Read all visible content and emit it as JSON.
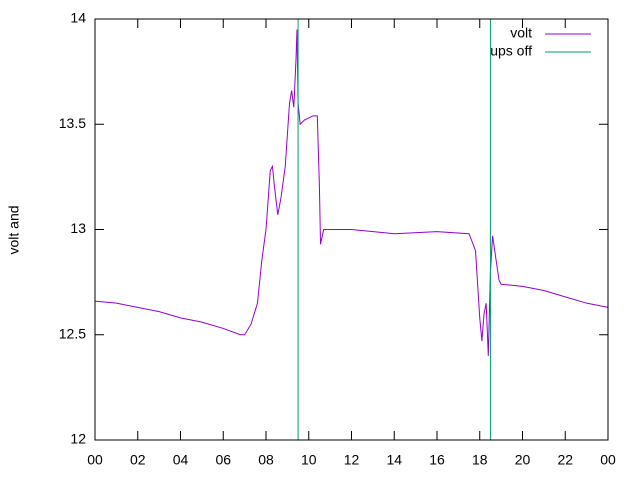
{
  "chart_data": {
    "type": "line",
    "ylabel": "volt and",
    "xlim": [
      0,
      24
    ],
    "xticks": [
      {
        "value": 0,
        "label": "00"
      },
      {
        "value": 2,
        "label": "02"
      },
      {
        "value": 4,
        "label": "04"
      },
      {
        "value": 6,
        "label": "06"
      },
      {
        "value": 8,
        "label": "08"
      },
      10,
      12,
      14,
      16,
      18,
      20,
      22,
      {
        "value": 24,
        "label": "00"
      }
    ],
    "ylim": [
      12,
      14
    ],
    "yticks": [
      12,
      12.5,
      13,
      13.5,
      14
    ],
    "legend": "top-right",
    "series": [
      {
        "name": "volt",
        "color": "#9400d3",
        "style": "lines",
        "x": [
          0,
          1,
          2,
          3,
          4,
          5,
          6,
          6.8,
          7,
          7.3,
          7.6,
          7.8,
          8,
          8.2,
          8.3,
          8.4,
          8.55,
          8.7,
          8.9,
          9.1,
          9.2,
          9.3,
          9.4,
          9.45,
          9.5,
          9.6,
          9.8,
          10,
          10.2,
          10.4,
          10.5,
          10.55,
          10.7,
          12,
          14,
          16,
          17.5,
          17.8,
          18,
          18.1,
          18.2,
          18.3,
          18.4,
          18.5,
          18.6,
          18.7,
          18.9,
          19,
          20,
          21,
          22,
          23,
          24
        ],
        "values": [
          12.66,
          12.65,
          12.63,
          12.61,
          12.58,
          12.56,
          12.53,
          12.5,
          12.5,
          12.55,
          12.65,
          12.85,
          13.0,
          13.28,
          13.3,
          13.2,
          13.07,
          13.15,
          13.3,
          13.6,
          13.66,
          13.58,
          13.8,
          13.95,
          13.6,
          13.5,
          13.52,
          13.53,
          13.54,
          13.54,
          13.2,
          12.93,
          13.0,
          13.0,
          12.98,
          12.99,
          12.98,
          12.9,
          12.58,
          12.47,
          12.6,
          12.65,
          12.4,
          12.8,
          12.97,
          12.9,
          12.76,
          12.74,
          12.73,
          12.71,
          12.68,
          12.65,
          12.63
        ]
      },
      {
        "name": "ups off",
        "color": "#009e73",
        "style": "impulses",
        "x": [
          9.5,
          18.5
        ],
        "values": [
          14,
          14
        ]
      }
    ]
  }
}
